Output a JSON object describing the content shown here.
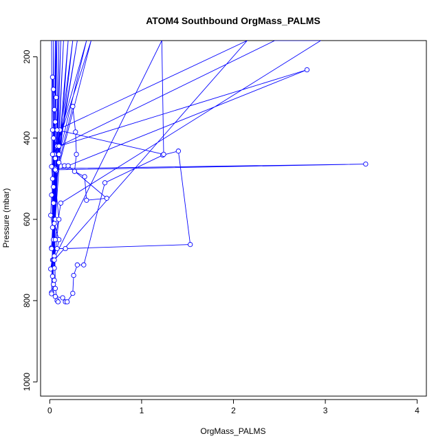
{
  "chart_data": {
    "type": "line",
    "title": "ATOM4 Southbound OrgMass_PALMS",
    "xlabel": "OrgMass_PALMS",
    "ylabel": "Pressure (mbar)",
    "xlim": [
      -0.1,
      4.1
    ],
    "ylim": [
      1035,
      160
    ],
    "y_reversed": true,
    "grid": false,
    "x_ticks": [
      0,
      1,
      2,
      3,
      4
    ],
    "y_ticks": [
      200,
      400,
      600,
      800,
      1000
    ],
    "series_color": "#0000ff",
    "series": [
      {
        "points": [
          [
            0.02,
            160
          ],
          [
            0.03,
            700
          ],
          [
            0.04,
            160
          ],
          [
            0.05,
            720
          ],
          [
            0.06,
            160
          ],
          [
            0.04,
            760
          ],
          [
            0.07,
            160
          ],
          [
            0.02,
            780
          ],
          [
            0.08,
            160
          ],
          [
            0.03,
            740
          ],
          [
            0.1,
            160
          ],
          [
            0.05,
            690
          ],
          [
            0.12,
            160
          ],
          [
            0.04,
            650
          ],
          [
            0.15,
            160
          ],
          [
            0.06,
            600
          ],
          [
            0.2,
            160
          ],
          [
            0.05,
            560
          ],
          [
            0.25,
            160
          ],
          [
            0.04,
            520
          ],
          [
            0.3,
            160
          ],
          [
            0.06,
            480
          ],
          [
            0.4,
            160
          ],
          [
            0.05,
            440
          ],
          [
            0.45,
            160
          ],
          [
            0.02,
            540
          ],
          [
            0.01,
            590
          ],
          [
            0.03,
            620
          ],
          [
            0.02,
            670
          ],
          [
            0.08,
            672
          ],
          [
            0.1,
            650
          ],
          [
            0.05,
            610
          ],
          [
            0.04,
            560
          ],
          [
            0.03,
            500
          ],
          [
            0.02,
            470
          ],
          [
            0.06,
            450
          ],
          [
            0.08,
            420
          ],
          [
            0.04,
            400
          ],
          [
            0.03,
            380
          ],
          [
            0.06,
            360
          ],
          [
            0.05,
            330
          ],
          [
            0.07,
            300
          ],
          [
            0.04,
            280
          ],
          [
            0.03,
            250
          ],
          [
            0.06,
            770
          ],
          [
            0.02,
            783
          ],
          [
            0.05,
            750
          ],
          [
            0.08,
            800
          ],
          [
            0.09,
            803
          ],
          [
            0.06,
            790
          ],
          [
            0.14,
            793
          ],
          [
            0.17,
            803
          ],
          [
            0.19,
            803
          ],
          [
            0.25,
            782
          ],
          [
            0.26,
            738
          ],
          [
            0.3,
            712
          ],
          [
            0.37,
            712
          ],
          [
            0.6,
            510
          ],
          [
            1.23,
            442
          ],
          [
            1.4,
            432
          ],
          [
            1.53,
            662
          ],
          [
            0.17,
            672
          ],
          [
            0.02,
            672
          ],
          [
            0.07,
            480
          ],
          [
            0.1,
            440
          ],
          [
            0.11,
            380
          ],
          [
            0.08,
            420
          ],
          [
            0.06,
            475
          ],
          [
            3.44,
            464
          ],
          [
            0.06,
            478
          ],
          [
            0.19,
            470
          ],
          [
            0.16,
            468
          ],
          [
            0.1,
            460
          ],
          [
            0.25,
            322
          ],
          [
            0.28,
            385
          ],
          [
            0.29,
            440
          ],
          [
            0.27,
            482
          ],
          [
            0.38,
            495
          ],
          [
            0.4,
            553
          ],
          [
            0.62,
            548
          ],
          [
            0.2,
            468
          ],
          [
            2.8,
            232
          ],
          [
            0.1,
            420
          ],
          [
            2.45,
            160
          ],
          [
            2.95,
            160
          ],
          [
            0.12,
            560
          ],
          [
            0.06,
            650
          ],
          [
            0.01,
            722
          ],
          [
            0.04,
            700
          ],
          [
            1.22,
            160
          ],
          [
            1.24,
            440
          ],
          [
            0.08,
            380
          ],
          [
            2.15,
            160
          ],
          [
            0.05,
            700
          ],
          [
            0.1,
            600
          ],
          [
            0.03,
            440
          ]
        ]
      }
    ]
  }
}
